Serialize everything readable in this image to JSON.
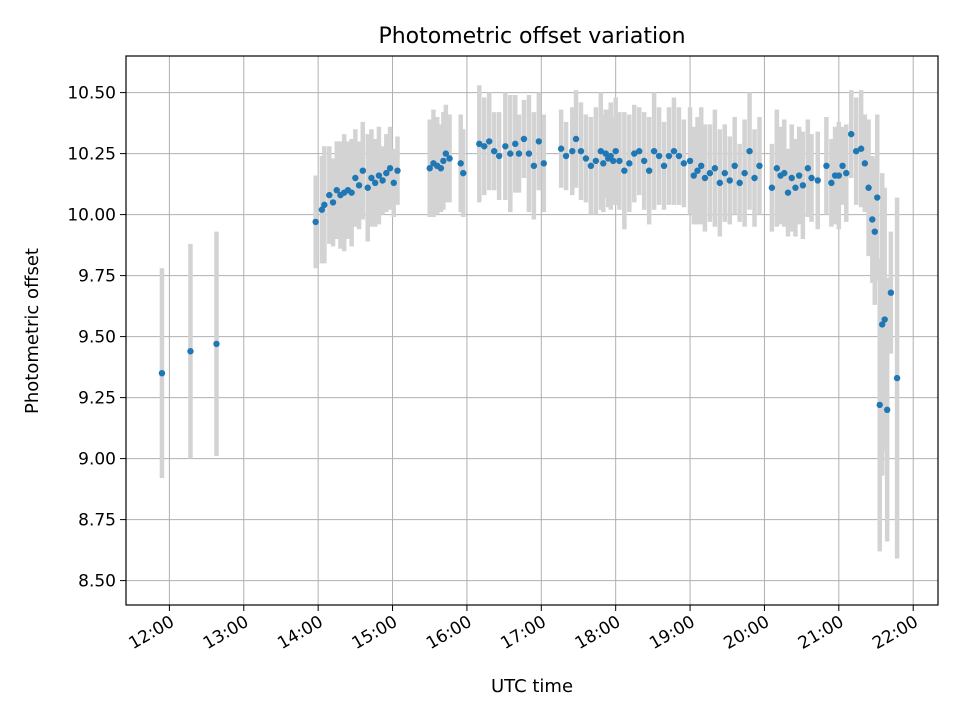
{
  "chart_data": {
    "type": "scatter",
    "title": "Photometric offset variation",
    "xlabel": "UTC time",
    "ylabel": "Photometric offset",
    "xlim": [
      "11:25",
      "22:20"
    ],
    "ylim": [
      8.4,
      10.65
    ],
    "grid": true,
    "legend": "none",
    "x_ticks": [
      "12:00",
      "13:00",
      "14:00",
      "15:00",
      "16:00",
      "17:00",
      "18:00",
      "19:00",
      "20:00",
      "21:00",
      "22:00"
    ],
    "y_ticks": [
      "8.50",
      "8.75",
      "9.00",
      "9.25",
      "9.50",
      "9.75",
      "10.00",
      "10.25",
      "10.50"
    ],
    "colors": {
      "marker": "#1f77b4",
      "errorbar": "#d3d3d3",
      "grid": "#b0b0b0"
    },
    "series": [
      {
        "x": [
          "11:54",
          "12:17",
          "12:38",
          "13:58",
          "14:03",
          "14:05",
          "14:09",
          "14:12",
          "14:15",
          "14:18",
          "14:21",
          "14:24",
          "14:27",
          "14:30",
          "14:33",
          "14:36",
          "14:40",
          "14:43",
          "14:46",
          "14:49",
          "14:52",
          "14:55",
          "14:58",
          "15:01",
          "15:04",
          "15:30",
          "15:33",
          "15:36",
          "15:39",
          "15:41",
          "15:43",
          "15:46",
          "15:55",
          "15:57",
          "16:10",
          "16:14",
          "16:18",
          "16:22",
          "16:26",
          "16:31",
          "16:35",
          "16:39",
          "16:42",
          "16:46",
          "16:50",
          "16:54",
          "16:58",
          "17:02",
          "17:16",
          "17:20",
          "17:25",
          "17:28",
          "17:32",
          "17:36",
          "17:40",
          "17:44",
          "17:48",
          "17:50",
          "17:52",
          "17:54",
          "17:56",
          "17:58",
          "18:00",
          "18:03",
          "18:07",
          "18:11",
          "18:15",
          "18:19",
          "18:23",
          "18:27",
          "18:31",
          "18:35",
          "18:39",
          "18:43",
          "18:47",
          "18:51",
          "18:55",
          "19:00",
          "19:03",
          "19:06",
          "19:09",
          "19:12",
          "19:16",
          "19:20",
          "19:24",
          "19:28",
          "19:32",
          "19:36",
          "19:40",
          "19:44",
          "19:48",
          "19:52",
          "19:56",
          "20:06",
          "20:10",
          "20:13",
          "20:16",
          "20:19",
          "20:22",
          "20:25",
          "20:28",
          "20:31",
          "20:35",
          "20:38",
          "20:43",
          "20:50",
          "20:54",
          "20:57",
          "21:00",
          "21:03",
          "21:06",
          "21:10",
          "21:14",
          "21:18",
          "21:21",
          "21:24",
          "21:27",
          "21:29",
          "21:31",
          "21:33",
          "21:35",
          "21:37",
          "21:39",
          "21:42",
          "21:47"
        ],
        "y": [
          9.35,
          9.44,
          9.47,
          9.97,
          10.02,
          10.04,
          10.08,
          10.05,
          10.1,
          10.08,
          10.09,
          10.1,
          10.09,
          10.15,
          10.12,
          10.18,
          10.11,
          10.15,
          10.13,
          10.16,
          10.14,
          10.17,
          10.19,
          10.13,
          10.18,
          10.19,
          10.21,
          10.2,
          10.19,
          10.22,
          10.25,
          10.23,
          10.21,
          10.17,
          10.29,
          10.28,
          10.3,
          10.26,
          10.24,
          10.28,
          10.25,
          10.29,
          10.25,
          10.31,
          10.25,
          10.2,
          10.3,
          10.21,
          10.27,
          10.24,
          10.26,
          10.31,
          10.26,
          10.23,
          10.2,
          10.22,
          10.26,
          10.21,
          10.25,
          10.23,
          10.24,
          10.22,
          10.26,
          10.22,
          10.18,
          10.21,
          10.25,
          10.26,
          10.22,
          10.18,
          10.26,
          10.24,
          10.2,
          10.24,
          10.26,
          10.24,
          10.21,
          10.22,
          10.16,
          10.18,
          10.2,
          10.15,
          10.17,
          10.19,
          10.13,
          10.17,
          10.14,
          10.2,
          10.13,
          10.17,
          10.26,
          10.15,
          10.2,
          10.11,
          10.19,
          10.16,
          10.17,
          10.09,
          10.15,
          10.11,
          10.16,
          10.12,
          10.19,
          10.15,
          10.14,
          10.2,
          10.13,
          10.16,
          10.16,
          10.2,
          10.17,
          10.33,
          10.26,
          10.27,
          10.21,
          10.11,
          9.98,
          9.93,
          10.07,
          9.22,
          9.55,
          9.57,
          9.2,
          9.68,
          9.33
        ],
        "yerr": [
          0.43,
          0.44,
          0.46,
          0.19,
          0.22,
          0.24,
          0.2,
          0.18,
          0.2,
          0.22,
          0.24,
          0.2,
          0.22,
          0.2,
          0.18,
          0.2,
          0.22,
          0.2,
          0.18,
          0.2,
          0.14,
          0.16,
          0.17,
          0.14,
          0.14,
          0.2,
          0.22,
          0.2,
          0.18,
          0.2,
          0.2,
          0.18,
          0.2,
          0.18,
          0.24,
          0.2,
          0.2,
          0.16,
          0.18,
          0.22,
          0.24,
          0.2,
          0.16,
          0.16,
          0.24,
          0.22,
          0.2,
          0.2,
          0.16,
          0.14,
          0.18,
          0.2,
          0.2,
          0.18,
          0.2,
          0.22,
          0.24,
          0.2,
          0.18,
          0.2,
          0.22,
          0.18,
          0.22,
          0.2,
          0.24,
          0.2,
          0.2,
          0.18,
          0.2,
          0.22,
          0.24,
          0.2,
          0.18,
          0.2,
          0.22,
          0.2,
          0.18,
          0.22,
          0.2,
          0.22,
          0.24,
          0.22,
          0.2,
          0.24,
          0.22,
          0.2,
          0.18,
          0.2,
          0.16,
          0.22,
          0.24,
          0.2,
          0.2,
          0.18,
          0.24,
          0.2,
          0.22,
          0.18,
          0.22,
          0.2,
          0.2,
          0.22,
          0.2,
          0.18,
          0.2,
          0.2,
          0.18,
          0.2,
          0.22,
          0.16,
          0.2,
          0.18,
          0.22,
          0.24,
          0.2,
          0.28,
          0.26,
          0.3,
          0.34,
          0.6,
          0.62,
          0.54,
          0.54,
          0.25,
          0.74
        ]
      }
    ]
  }
}
